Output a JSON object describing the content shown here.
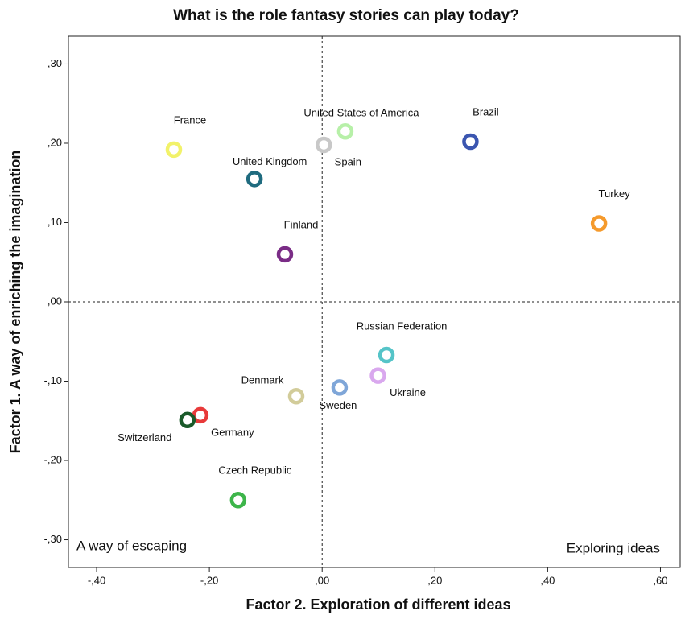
{
  "chart_data": {
    "type": "scatter",
    "title": "What is the role fantasy stories can play today?",
    "x_label": "Factor 2. Exploration of different ideas",
    "y_label": "Factor 1. A way of enriching the imagination",
    "annotations": [
      "A way of escaping",
      "Exploring ideas"
    ],
    "xlim": [
      -0.45,
      0.635
    ],
    "ylim": [
      -0.335,
      0.335
    ],
    "xticks": [
      {
        "value": -0.4,
        "label": "-,40"
      },
      {
        "value": -0.2,
        "label": "-,20"
      },
      {
        "value": 0,
        "label": ",00"
      },
      {
        "value": 0.2,
        "label": ",20"
      },
      {
        "value": 0.4,
        "label": ",40"
      },
      {
        "value": 0.6,
        "label": ",60"
      }
    ],
    "yticks": [
      {
        "value": 0.3,
        "label": ",30"
      },
      {
        "value": 0.2,
        "label": ",20"
      },
      {
        "value": 0.1,
        "label": ",10"
      },
      {
        "value": 0,
        "label": ",00"
      },
      {
        "value": -0.1,
        "label": "-,10"
      },
      {
        "value": -0.2,
        "label": "-,20"
      },
      {
        "value": -0.3,
        "label": "-,30"
      }
    ],
    "reference_lines": {
      "x": 0,
      "y": 0
    },
    "points": [
      {
        "name": "France",
        "x": -0.263,
        "y": 0.192,
        "color": "#f2f26a"
      },
      {
        "name": "United Kingdom",
        "x": -0.12,
        "y": 0.155,
        "color": "#1f6b7f"
      },
      {
        "name": "Spain",
        "x": 0.003,
        "y": 0.198,
        "color": "#c8c8c8"
      },
      {
        "name": "United States of America",
        "x": 0.041,
        "y": 0.215,
        "color": "#b7f0a8"
      },
      {
        "name": "Brazil",
        "x": 0.263,
        "y": 0.202,
        "color": "#3b56b0"
      },
      {
        "name": "Turkey",
        "x": 0.491,
        "y": 0.099,
        "color": "#f59a2c"
      },
      {
        "name": "Finland",
        "x": -0.066,
        "y": 0.06,
        "color": "#7a2c86"
      },
      {
        "name": "Russian Federation",
        "x": 0.114,
        "y": -0.067,
        "color": "#55c4c8"
      },
      {
        "name": "Ukraine",
        "x": 0.099,
        "y": -0.093,
        "color": "#d9a8ee"
      },
      {
        "name": "Sweden",
        "x": 0.031,
        "y": -0.108,
        "color": "#7fa6d8"
      },
      {
        "name": "Denmark",
        "x": -0.046,
        "y": -0.119,
        "color": "#d2cc9a"
      },
      {
        "name": "Germany",
        "x": -0.216,
        "y": -0.143,
        "color": "#e83a3a"
      },
      {
        "name": "Switzerland",
        "x": -0.239,
        "y": -0.149,
        "color": "#1a5a2a"
      },
      {
        "name": "Czech Republic",
        "x": -0.149,
        "y": -0.25,
        "color": "#3db54a"
      }
    ]
  }
}
